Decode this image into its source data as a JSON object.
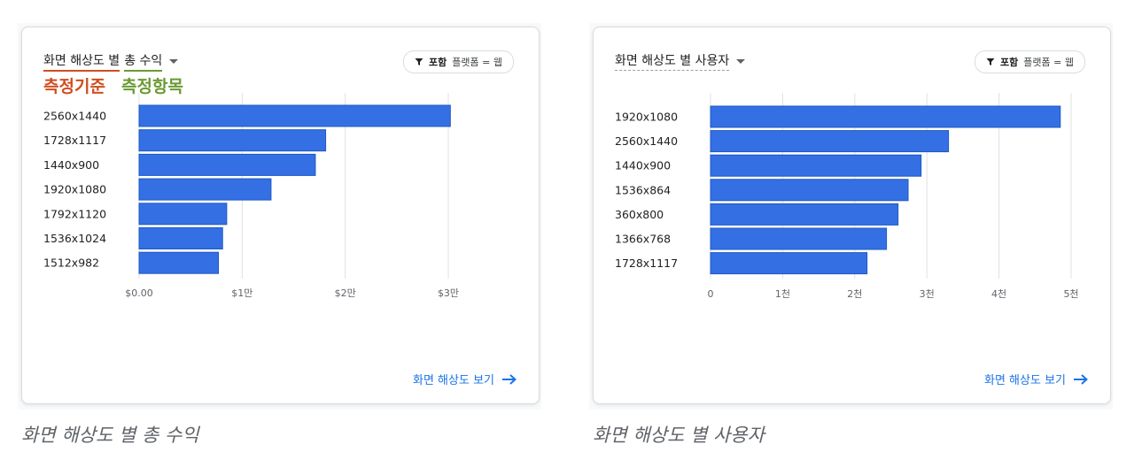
{
  "left_card": {
    "title_dimension": "화면 해상도 별",
    "title_metric": "총 수익",
    "annotation_dimension": "측정기준",
    "annotation_metric": "측정항목",
    "filter_bold": "포함",
    "filter_text": "플랫폼 = 웹",
    "link_text": "화면 해상도 보기",
    "caption": "화면 해상도 별 총 수익"
  },
  "right_card": {
    "title": "화면 해상도 별 사용자",
    "filter_bold": "포함",
    "filter_text": "플랫폼 = 웹",
    "link_text": "화면 해상도 보기",
    "caption": "화면 해상도 별 사용자"
  },
  "colors": {
    "bar": "#3470e4",
    "bar_edge": "#1f57c3",
    "grid": "#e0e0e0",
    "link": "#1a73e8"
  },
  "chart_data": [
    {
      "type": "bar",
      "orientation": "horizontal",
      "title": "화면 해상도 별 총 수익",
      "categories": [
        "2560x1440",
        "1728x1117",
        "1440x900",
        "1920x1080",
        "1792x1120",
        "1536x1024",
        "1512x982"
      ],
      "values": [
        30200,
        18100,
        17100,
        12800,
        8500,
        8100,
        7700
      ],
      "xlim": [
        0,
        30000
      ],
      "xticks": [
        0,
        10000,
        20000,
        30000
      ],
      "xtick_labels": [
        "$0.00",
        "$1만",
        "$2만",
        "$3만"
      ]
    },
    {
      "type": "bar",
      "orientation": "horizontal",
      "title": "화면 해상도 별 사용자",
      "categories": [
        "1920x1080",
        "2560x1440",
        "1440x900",
        "1536x864",
        "360x800",
        "1366x768",
        "1728x1117"
      ],
      "values": [
        4850,
        3300,
        2920,
        2740,
        2600,
        2440,
        2170
      ],
      "xlim": [
        0,
        5000
      ],
      "xticks": [
        0,
        1000,
        2000,
        3000,
        4000,
        5000
      ],
      "xtick_labels": [
        "0",
        "1천",
        "2천",
        "3천",
        "4천",
        "5천"
      ]
    }
  ]
}
